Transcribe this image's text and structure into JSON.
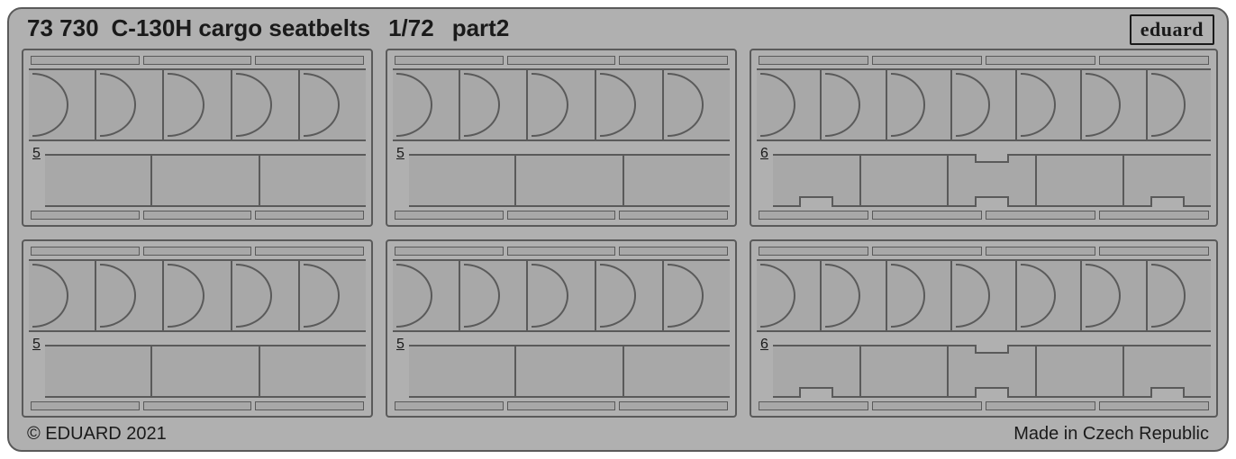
{
  "header": {
    "code": "73 730",
    "title": "C-130H cargo seatbelts",
    "scale": "1/72",
    "part": "part2"
  },
  "brand": "eduard",
  "footer": {
    "left": "© EDUARD 2021",
    "right": "Made in Czech Republic"
  },
  "colors": {
    "sheet_bg": "#b0b0b0",
    "line": "#5a5a5a",
    "fill": "#a8a8a8",
    "text": "#1a1a1a"
  },
  "panels": [
    {
      "row": 0,
      "col": 0,
      "label": "5",
      "upper_seats": 5,
      "lower_slots": 3,
      "rail_segments": 3,
      "notch_top_at": null
    },
    {
      "row": 0,
      "col": 1,
      "label": "5",
      "upper_seats": 5,
      "lower_slots": 3,
      "rail_segments": 3,
      "notch_top_at": null
    },
    {
      "row": 0,
      "col": 2,
      "label": "6",
      "upper_seats": 7,
      "lower_slots": 5,
      "rail_segments": 4,
      "notch_top_at": 2
    },
    {
      "row": 1,
      "col": 0,
      "label": "5",
      "upper_seats": 5,
      "lower_slots": 3,
      "rail_segments": 3,
      "notch_top_at": null
    },
    {
      "row": 1,
      "col": 1,
      "label": "5",
      "upper_seats": 5,
      "lower_slots": 3,
      "rail_segments": 3,
      "notch_top_at": null
    },
    {
      "row": 1,
      "col": 2,
      "label": "6",
      "upper_seats": 7,
      "lower_slots": 5,
      "rail_segments": 4,
      "notch_top_at": 2
    }
  ],
  "lower_bottom_notches": [
    0,
    2,
    4
  ]
}
